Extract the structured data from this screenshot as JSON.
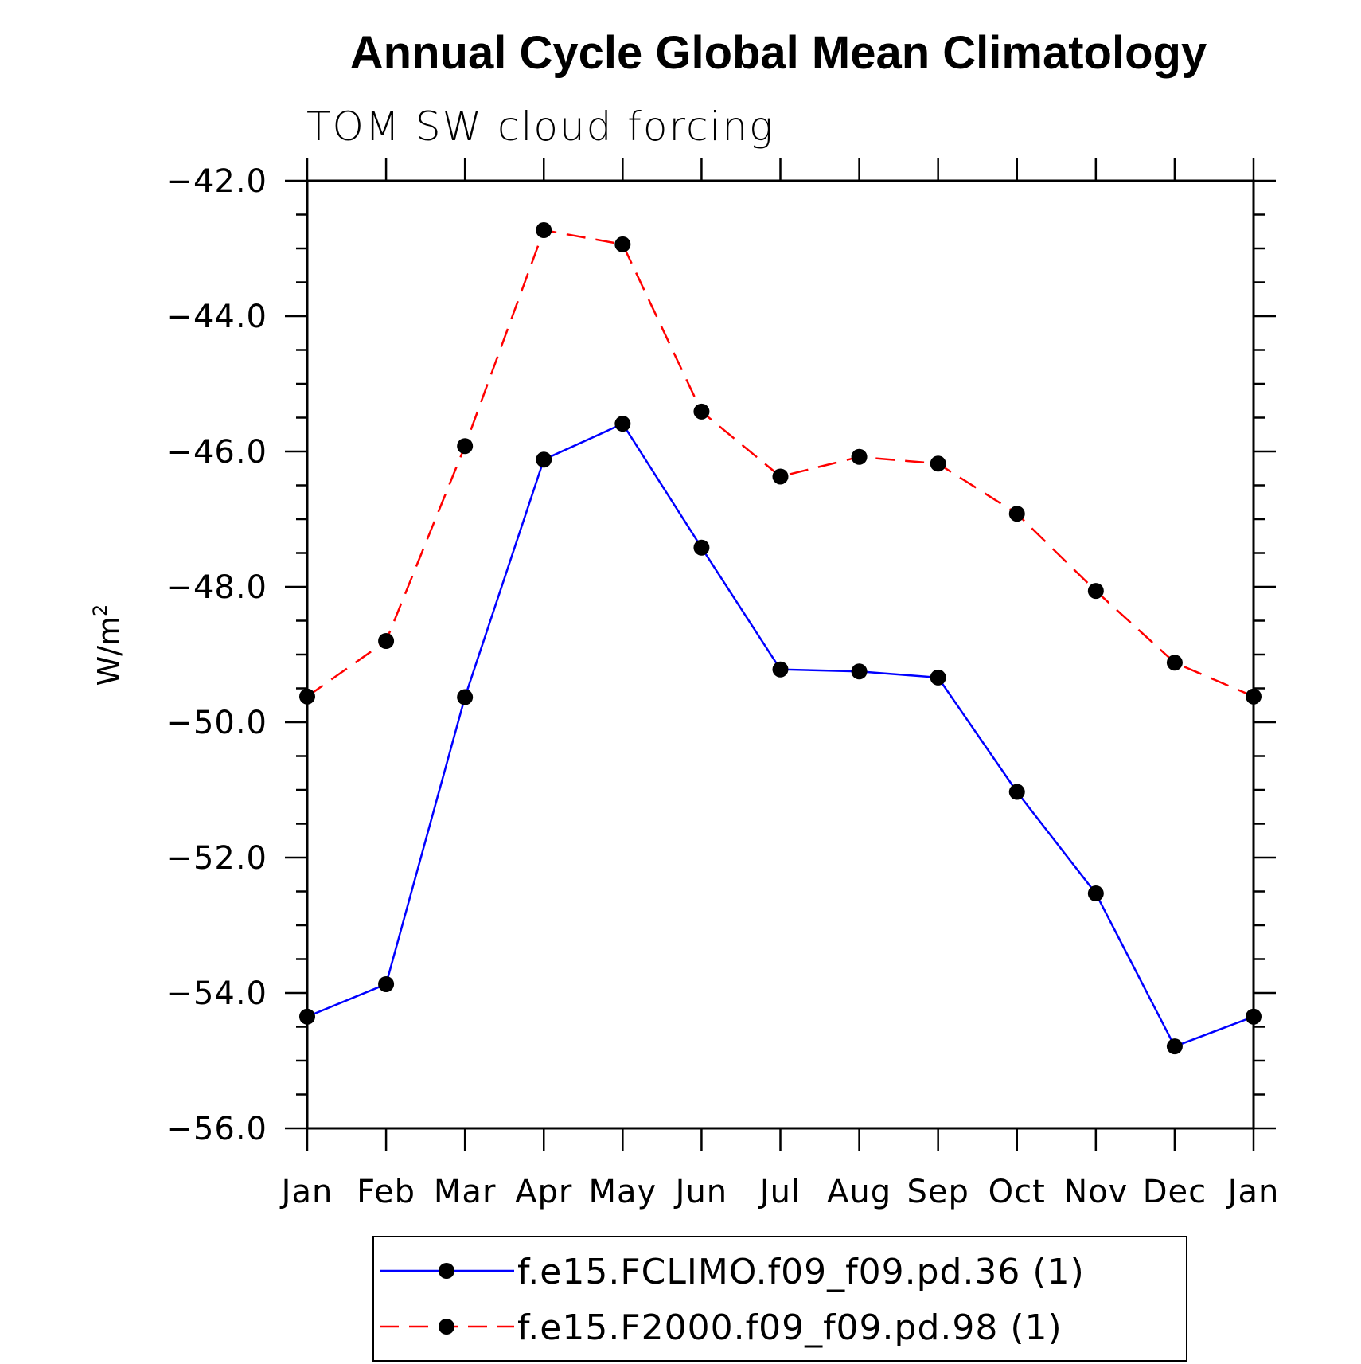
{
  "chart_data": {
    "type": "line",
    "title": "Annual Cycle Global Mean Climatology",
    "subtitle": "TOM SW cloud forcing",
    "ylabel_base": "W/m",
    "ylabel_sup": "2",
    "ylim": [
      -56.0,
      -42.0
    ],
    "yticks": [
      -42.0,
      -44.0,
      -46.0,
      -48.0,
      -50.0,
      -52.0,
      -54.0,
      -56.0
    ],
    "ytick_labels": [
      "−42.0",
      "−44.0",
      "−46.0",
      "−48.0",
      "−50.0",
      "−52.0",
      "−54.0",
      "−56.0"
    ],
    "categories": [
      "Jan",
      "Feb",
      "Mar",
      "Apr",
      "May",
      "Jun",
      "Jul",
      "Aug",
      "Sep",
      "Oct",
      "Nov",
      "Dec",
      "Jan"
    ],
    "series": [
      {
        "name": "f.e15.FCLIMO.f09_f09.pd.36 (1)",
        "color": "#0000ff",
        "dash": "solid",
        "values": [
          -54.35,
          -53.87,
          -49.63,
          -46.12,
          -45.59,
          -47.42,
          -49.22,
          -49.25,
          -49.34,
          -51.03,
          -52.53,
          -54.79,
          -54.35
        ]
      },
      {
        "name": "f.e15.F2000.f09_f09.pd.98 (1)",
        "color": "#ff0000",
        "dash": "dashed",
        "values": [
          -49.62,
          -48.8,
          -45.92,
          -42.73,
          -42.94,
          -45.41,
          -46.37,
          -46.08,
          -46.18,
          -46.92,
          -48.06,
          -49.12,
          -49.62
        ]
      }
    ],
    "legend_position": "bottom"
  }
}
